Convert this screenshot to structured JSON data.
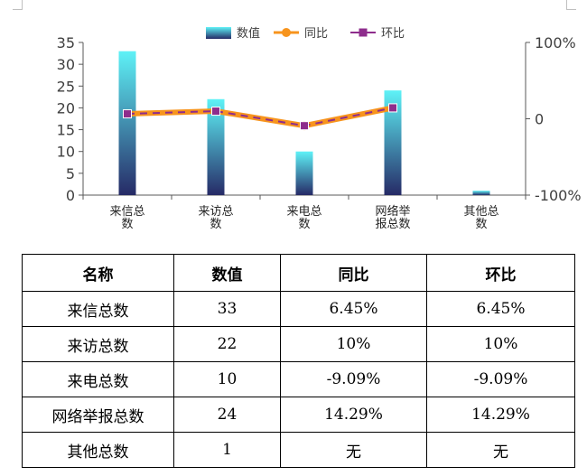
{
  "chart_data": {
    "type": "bar",
    "categories": [
      "来信总数",
      "来访总数",
      "来电总数",
      "网络举报总数",
      "其他总数"
    ],
    "category_label_lines": [
      [
        "来信总",
        "数"
      ],
      [
        "来访总",
        "数"
      ],
      [
        "来电总",
        "数"
      ],
      [
        "网络举",
        "报总数"
      ],
      [
        "其他总",
        "数"
      ]
    ],
    "series": [
      {
        "name": "数值",
        "type": "bar",
        "axis": "left",
        "values": [
          33,
          22,
          10,
          24,
          1
        ]
      },
      {
        "name": "同比",
        "type": "line",
        "axis": "right",
        "values": [
          6.45,
          10,
          -9.09,
          14.29,
          null
        ]
      },
      {
        "name": "环比",
        "type": "line",
        "axis": "right",
        "values": [
          6.45,
          10,
          -9.09,
          14.29,
          null
        ]
      }
    ],
    "y_left": {
      "ylim": [
        0,
        35
      ],
      "ticks": [
        "0",
        "5",
        "10",
        "15",
        "20",
        "25",
        "30",
        "35"
      ]
    },
    "y_right": {
      "ylim": [
        -100,
        100
      ],
      "unit": "%",
      "ticks": [
        "-100%",
        "0",
        "100%"
      ]
    },
    "legend_position": "top-center",
    "grid": false
  },
  "colors": {
    "bar_top": "#5ef2f7",
    "bar_bottom": "#262a66",
    "yoy_line": "#f7941d",
    "mom_marker": "#8e2d8c",
    "axis": "#595959"
  },
  "table": {
    "headers": [
      "名称",
      "数值",
      "同比",
      "环比"
    ],
    "rows": [
      [
        "来信总数",
        "33",
        "6.45%",
        "6.45%"
      ],
      [
        "来访总数",
        "22",
        "10%",
        "10%"
      ],
      [
        "来电总数",
        "10",
        "-9.09%",
        "-9.09%"
      ],
      [
        "网络举报总数",
        "24",
        "14.29%",
        "14.29%"
      ],
      [
        "其他总数",
        "1",
        "无",
        "无"
      ]
    ]
  }
}
